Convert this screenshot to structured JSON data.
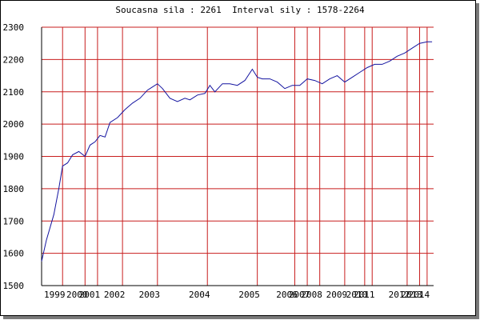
{
  "header": {
    "current_label": "Soucasna sila : ",
    "current_value": "2261",
    "interval_label": "Interval sily : ",
    "interval_value": "1578-2264"
  },
  "colors": {
    "line": "#1414a0",
    "grid": "#c81e1e",
    "axis": "#000000"
  },
  "chart_data": {
    "type": "line",
    "title": "",
    "xlabel": "",
    "ylabel": "",
    "ylim": [
      1500,
      2300
    ],
    "yticks": [
      1500,
      1600,
      1700,
      1800,
      1900,
      2000,
      2100,
      2200,
      2300
    ],
    "xlim": [
      1998.36,
      2014.06
    ],
    "xticks": [
      {
        "label": "1999",
        "x": 1999.2
      },
      {
        "label": "2000",
        "x": 2000.1
      },
      {
        "label": "2001",
        "x": 2000.6
      },
      {
        "label": "2002",
        "x": 2001.6
      },
      {
        "label": "2003",
        "x": 2003.0
      },
      {
        "label": "2004",
        "x": 2005.0
      },
      {
        "label": "2005",
        "x": 2007.0
      },
      {
        "label": "2006",
        "x": 2008.5
      },
      {
        "label": "2007",
        "x": 2009.0
      },
      {
        "label": "2008",
        "x": 2009.5
      },
      {
        "label": "2009",
        "x": 2010.5
      },
      {
        "label": "2010",
        "x": 2011.3
      },
      {
        "label": "2011",
        "x": 2011.6
      },
      {
        "label": "2012",
        "x": 2013.0
      },
      {
        "label": "2013",
        "x": 2013.5
      },
      {
        "label": "2014",
        "x": 2013.8
      }
    ],
    "series": [
      {
        "x": [
          1998.36,
          1998.55,
          1998.85,
          1999.05,
          1999.2,
          1999.4,
          1999.6,
          1999.85,
          2000.1,
          2000.3,
          2000.5,
          2000.7,
          2000.9,
          2001.1,
          2001.4,
          2001.7,
          2002.0,
          2002.3,
          2002.6,
          2002.8,
          2003.0,
          2003.2,
          2003.5,
          2003.8,
          2004.1,
          2004.3,
          2004.6,
          2004.9,
          2005.1,
          2005.3,
          2005.6,
          2005.9,
          2006.2,
          2006.5,
          2006.8,
          2007.0,
          2007.2,
          2007.5,
          2007.8,
          2008.1,
          2008.4,
          2008.7,
          2009.0,
          2009.3,
          2009.6,
          2009.9,
          2010.2,
          2010.5,
          2010.8,
          2011.1,
          2011.4,
          2011.7,
          2012.0,
          2012.3,
          2012.6,
          2012.9,
          2013.2,
          2013.5,
          2013.8,
          2014.0
        ],
        "y": [
          1575,
          1640,
          1720,
          1800,
          1870,
          1880,
          1905,
          1915,
          1900,
          1935,
          1945,
          1965,
          1960,
          2005,
          2020,
          2045,
          2065,
          2080,
          2105,
          2115,
          2125,
          2110,
          2080,
          2070,
          2080,
          2075,
          2090,
          2095,
          2120,
          2100,
          2125,
          2125,
          2120,
          2135,
          2170,
          2145,
          2140,
          2140,
          2130,
          2110,
          2120,
          2120,
          2140,
          2135,
          2125,
          2140,
          2150,
          2130,
          2145,
          2160,
          2175,
          2185,
          2185,
          2195,
          2210,
          2220,
          2235,
          2250,
          2255,
          2255
        ]
      }
    ]
  }
}
